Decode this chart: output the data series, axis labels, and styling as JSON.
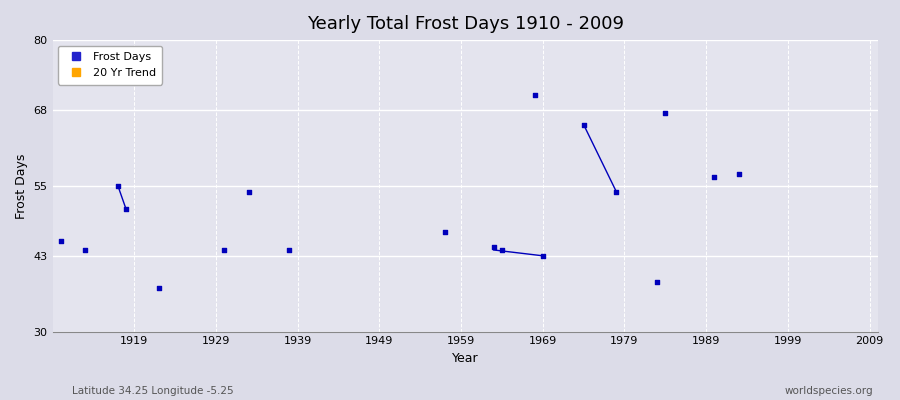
{
  "title": "Yearly Total Frost Days 1910 - 2009",
  "xlabel": "Year",
  "ylabel": "Frost Days",
  "xlim": [
    1909,
    2010
  ],
  "ylim": [
    30,
    80
  ],
  "yticks": [
    30,
    43,
    55,
    68,
    80
  ],
  "xticks": [
    1919,
    1929,
    1939,
    1949,
    1959,
    1969,
    1979,
    1989,
    1999,
    2009
  ],
  "bg_outer_color": "#dcdce8",
  "plot_bg_color": "#e4e4ee",
  "grid_color_h": "#c8c8d8",
  "grid_color_v": "#c8c8d8",
  "frost_days_color": "#0000bb",
  "trend_color": "#0000bb",
  "legend_frost_color": "#2222cc",
  "legend_trend_color": "#ffa500",
  "subtitle": "Latitude 34.25 Longitude -5.25",
  "watermark": "worldspecies.org",
  "scatter_x": [
    1910,
    1913,
    1917,
    1918,
    1922,
    1930,
    1933,
    1938,
    1957,
    1963,
    1964,
    1968,
    1969,
    1974,
    1978,
    1983,
    1984,
    1990,
    1993
  ],
  "scatter_y": [
    45.5,
    44.0,
    55.0,
    51.0,
    37.5,
    44.0,
    54.0,
    44.0,
    47.0,
    44.5,
    44.0,
    70.5,
    43.0,
    65.5,
    54.0,
    38.5,
    67.5,
    56.5,
    57.0
  ],
  "trend_segments": [
    {
      "x": [
        1917,
        1918
      ],
      "y": [
        55.0,
        51.0
      ]
    },
    {
      "x": [
        1963,
        1969
      ],
      "y": [
        44.0,
        43.0
      ]
    },
    {
      "x": [
        1974,
        1978
      ],
      "y": [
        65.5,
        54.0
      ]
    }
  ]
}
